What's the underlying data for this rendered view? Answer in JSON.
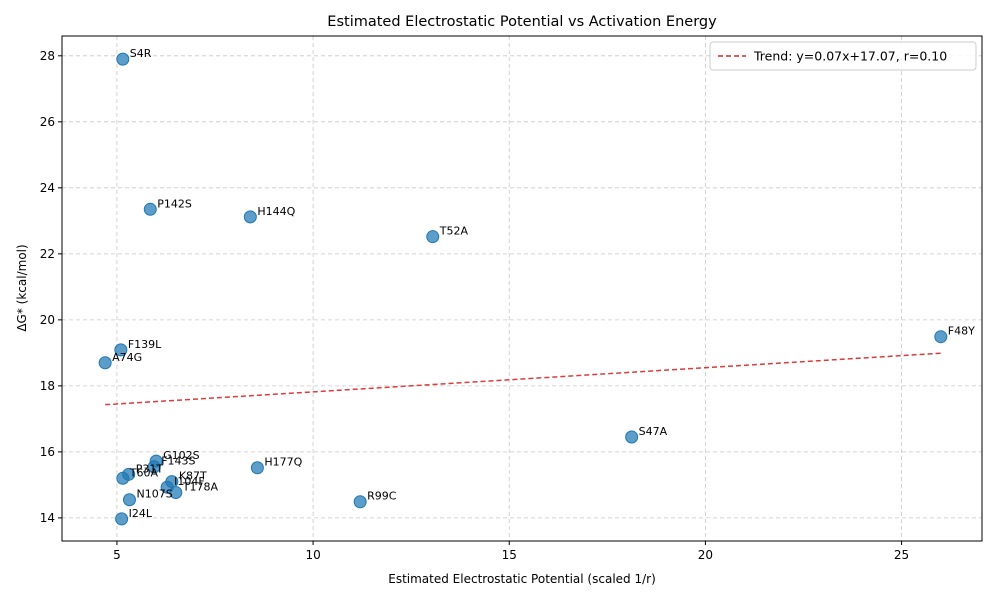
{
  "chart_data": {
    "type": "scatter",
    "title": "Estimated Electrostatic Potential vs Activation Energy",
    "xlabel": "Estimated Electrostatic Potential (scaled 1/r)",
    "ylabel": "ΔG* (kcal/mol)",
    "xlim": [
      3.6,
      27.05
    ],
    "ylim": [
      13.3,
      28.6
    ],
    "xticks": [
      5,
      10,
      15,
      20,
      25
    ],
    "yticks": [
      14,
      16,
      18,
      20,
      22,
      24,
      26,
      28
    ],
    "grid": true,
    "legend_position": "top-right",
    "point_color": "#1f77b4",
    "trend_color": "#d62728",
    "points": [
      {
        "label": "S4R",
        "x": 5.15,
        "y": 27.9
      },
      {
        "label": "P142S",
        "x": 5.85,
        "y": 23.35
      },
      {
        "label": "H144Q",
        "x": 8.4,
        "y": 23.12
      },
      {
        "label": "T52A",
        "x": 13.05,
        "y": 22.52
      },
      {
        "label": "F48Y",
        "x": 26.0,
        "y": 19.49
      },
      {
        "label": "F139L",
        "x": 5.1,
        "y": 19.09
      },
      {
        "label": "A74G",
        "x": 4.7,
        "y": 18.7
      },
      {
        "label": "S47A",
        "x": 18.12,
        "y": 16.45
      },
      {
        "label": "G102S",
        "x": 6.0,
        "y": 15.72
      },
      {
        "label": "F143S",
        "x": 5.95,
        "y": 15.55
      },
      {
        "label": "H177Q",
        "x": 8.58,
        "y": 15.52
      },
      {
        "label": "P31T",
        "x": 5.3,
        "y": 15.32
      },
      {
        "label": "T60A",
        "x": 5.15,
        "y": 15.2
      },
      {
        "label": "K87T",
        "x": 6.4,
        "y": 15.1
      },
      {
        "label": "I104F",
        "x": 6.28,
        "y": 14.93
      },
      {
        "label": "T178A",
        "x": 6.5,
        "y": 14.77
      },
      {
        "label": "N107S",
        "x": 5.32,
        "y": 14.55
      },
      {
        "label": "R99C",
        "x": 11.2,
        "y": 14.49
      },
      {
        "label": "I24L",
        "x": 5.12,
        "y": 13.97
      }
    ],
    "trend": {
      "label": "Trend: y=0.07x+17.07, r=0.10",
      "x": [
        4.7,
        26.0
      ],
      "y": [
        17.43,
        18.99
      ]
    }
  }
}
